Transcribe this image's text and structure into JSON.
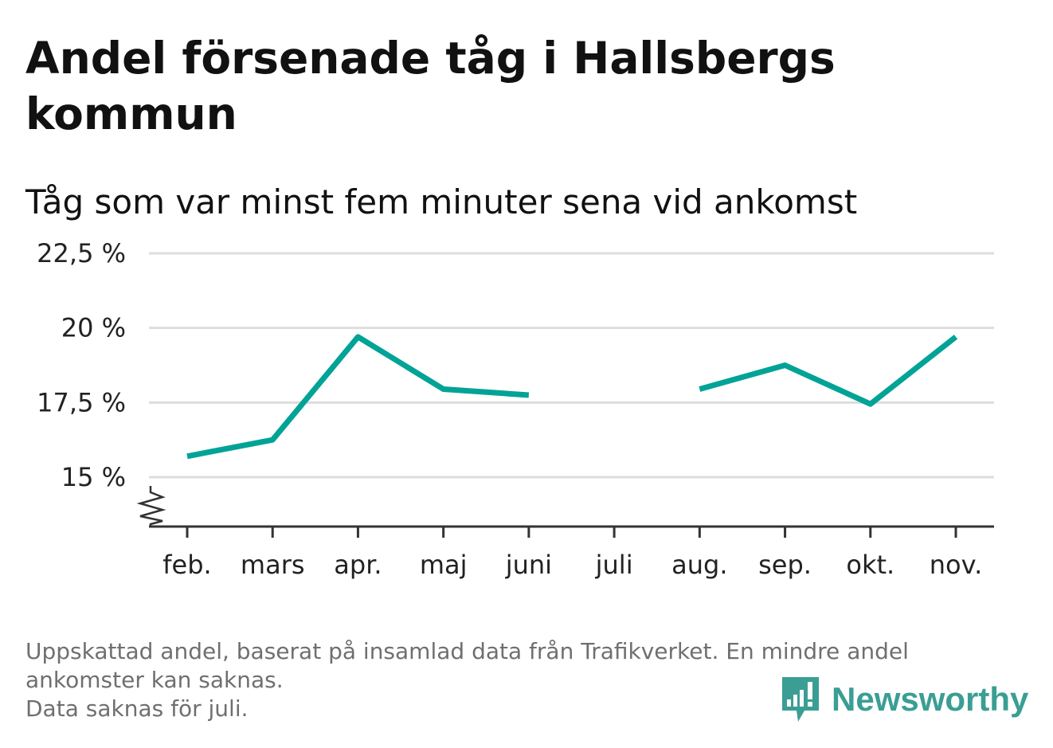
{
  "title": "Andel försenade tåg i Hallsbergs kommun",
  "subtitle": "Tåg som var minst fem minuter sena vid ankomst",
  "footnote": {
    "line1": "Uppskattad andel, baserat på insamlad data från Trafikverket. En mindre andel",
    "line2": "ankomster kan saknas.",
    "line3": "Data saknas för juli."
  },
  "brand": {
    "name": "Newsworthy",
    "color": "#3a9e94",
    "icon": "newsworthy-logo-icon"
  },
  "chart_data": {
    "type": "line",
    "categories": [
      "feb.",
      "mars",
      "apr.",
      "maj",
      "juni",
      "juli",
      "aug.",
      "sep.",
      "okt.",
      "nov."
    ],
    "series": [
      {
        "values": [
          15.7,
          16.25,
          19.7,
          17.95,
          17.75,
          null,
          17.95,
          18.75,
          17.45,
          19.7
        ]
      }
    ],
    "yticks": [
      15,
      17.5,
      20,
      22.5
    ],
    "ytick_labels": [
      "15 %",
      "17,5 %",
      "20 %",
      "22,5 %"
    ],
    "ylim": [
      15,
      22.5
    ],
    "axis_break": true,
    "grid": true,
    "line_color": "#00a396"
  }
}
